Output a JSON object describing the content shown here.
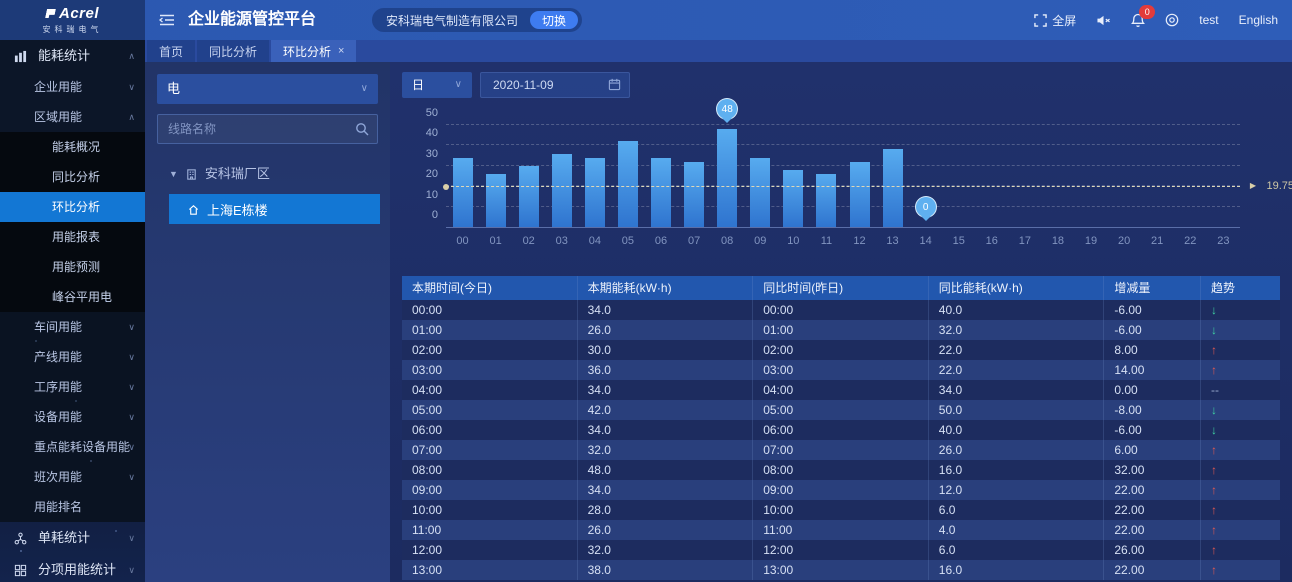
{
  "brand": {
    "name": "Acrel",
    "subtitle": "安科瑞电气"
  },
  "header": {
    "title": "企业能源管控平台",
    "company": "安科瑞电气制造有限公司",
    "switch_button": "切换",
    "fullscreen_label": "全屏",
    "bell_badge": "0",
    "username": "test",
    "language": "English"
  },
  "tabs": [
    {
      "label": "首页",
      "active": false,
      "closable": false
    },
    {
      "label": "同比分析",
      "active": false,
      "closable": false
    },
    {
      "label": "环比分析",
      "active": true,
      "closable": true
    }
  ],
  "sidebar": {
    "items": [
      {
        "label": "能耗统计",
        "level": 1,
        "icon": "bar-chart-icon",
        "chevron": "up",
        "zone": "top"
      },
      {
        "label": "企业用能",
        "level": 2,
        "chevron": "down",
        "zone": "top"
      },
      {
        "label": "区域用能",
        "level": 2,
        "chevron": "up",
        "zone": "top"
      },
      {
        "label": "能耗概况",
        "level": 3,
        "zone": "dark"
      },
      {
        "label": "同比分析",
        "level": 3,
        "zone": "dark"
      },
      {
        "label": "环比分析",
        "level": 3,
        "zone": "dark",
        "selected": true
      },
      {
        "label": "用能报表",
        "level": 3,
        "zone": "dark"
      },
      {
        "label": "用能预测",
        "level": 3,
        "zone": "dark"
      },
      {
        "label": "峰谷平用电",
        "level": 3,
        "zone": "dark"
      },
      {
        "label": "车间用能",
        "level": 2,
        "chevron": "down",
        "zone": "dark2"
      },
      {
        "label": "产线用能",
        "level": 2,
        "chevron": "down",
        "zone": "dark2"
      },
      {
        "label": "工序用能",
        "level": 2,
        "chevron": "down",
        "zone": "dark2"
      },
      {
        "label": "设备用能",
        "level": 2,
        "chevron": "down",
        "zone": "dark2"
      },
      {
        "label": "重点能耗设备用能",
        "level": 2,
        "chevron": "down",
        "zone": "dark2"
      },
      {
        "label": "班次用能",
        "level": 2,
        "chevron": "down",
        "zone": "dark2"
      },
      {
        "label": "用能排名",
        "level": 2,
        "zone": "dark2"
      },
      {
        "label": "单耗统计",
        "level": 1,
        "icon": "share-icon",
        "chevron": "down",
        "zone": "bottom"
      },
      {
        "label": "分项用能统计",
        "level": 1,
        "icon": "grid-icon",
        "chevron": "down",
        "zone": "bottom"
      }
    ]
  },
  "tree_panel": {
    "energy_select": "电",
    "search_placeholder": "线路名称",
    "root_node": "安科瑞厂区",
    "child_node": "上海E栋楼"
  },
  "toolbar": {
    "period": "日",
    "date": "2020-11-09"
  },
  "chart_data": {
    "type": "bar",
    "x": [
      "00",
      "01",
      "02",
      "03",
      "04",
      "05",
      "06",
      "07",
      "08",
      "09",
      "10",
      "11",
      "12",
      "13",
      "14",
      "15",
      "16",
      "17",
      "18",
      "19",
      "20",
      "21",
      "22",
      "23"
    ],
    "values": [
      34,
      26,
      30,
      36,
      34,
      42,
      34,
      32,
      48,
      34,
      28,
      26,
      32,
      38,
      0,
      0,
      0,
      0,
      0,
      0,
      0,
      0,
      0,
      0
    ],
    "ylim": [
      0,
      50
    ],
    "yticks": [
      0,
      10,
      20,
      30,
      40,
      50
    ],
    "average": 19.75,
    "average_label": "19.75",
    "max_marker": {
      "index": 8,
      "label": "48"
    },
    "min_marker": {
      "index": 14,
      "label": "0"
    },
    "grid": "dashed horizontal",
    "legend": "none",
    "bar_color_top": "#57abef",
    "bar_color_bottom": "#2f74cf"
  },
  "table": {
    "columns": [
      "本期时间(今日)",
      "本期能耗(kW·h)",
      "同比时间(昨日)",
      "同比能耗(kW·h)",
      "增减量",
      "趋势"
    ],
    "rows": [
      [
        "00:00",
        "34.0",
        "00:00",
        "40.0",
        "-6.00",
        "down"
      ],
      [
        "01:00",
        "26.0",
        "01:00",
        "32.0",
        "-6.00",
        "down"
      ],
      [
        "02:00",
        "30.0",
        "02:00",
        "22.0",
        "8.00",
        "up"
      ],
      [
        "03:00",
        "36.0",
        "03:00",
        "22.0",
        "14.00",
        "up"
      ],
      [
        "04:00",
        "34.0",
        "04:00",
        "34.0",
        "0.00",
        "flat"
      ],
      [
        "05:00",
        "42.0",
        "05:00",
        "50.0",
        "-8.00",
        "down"
      ],
      [
        "06:00",
        "34.0",
        "06:00",
        "40.0",
        "-6.00",
        "down"
      ],
      [
        "07:00",
        "32.0",
        "07:00",
        "26.0",
        "6.00",
        "up"
      ],
      [
        "08:00",
        "48.0",
        "08:00",
        "16.0",
        "32.00",
        "up"
      ],
      [
        "09:00",
        "34.0",
        "09:00",
        "12.0",
        "22.00",
        "up"
      ],
      [
        "10:00",
        "28.0",
        "10:00",
        "6.0",
        "22.00",
        "up"
      ],
      [
        "11:00",
        "26.0",
        "11:00",
        "4.0",
        "22.00",
        "up"
      ],
      [
        "12:00",
        "32.0",
        "12:00",
        "6.0",
        "26.00",
        "up"
      ],
      [
        "13:00",
        "38.0",
        "13:00",
        "16.0",
        "22.00",
        "up"
      ]
    ],
    "trend_glyphs": {
      "up": "↑",
      "down": "↓",
      "flat": "--"
    }
  },
  "colors": {
    "header_bg": "#2e5db8",
    "selected_blue": "#1377d4",
    "switch_button_bg": "#3e7cf0",
    "table_header_bg": "#2257ae",
    "row_dark": "#1d2c5f",
    "row_light": "#293f7c",
    "trend_up_red": "#e05a52",
    "trend_down_green": "#3fd2a2",
    "badge_red": "#e23b3b",
    "average_line": "#d9cfa8"
  }
}
